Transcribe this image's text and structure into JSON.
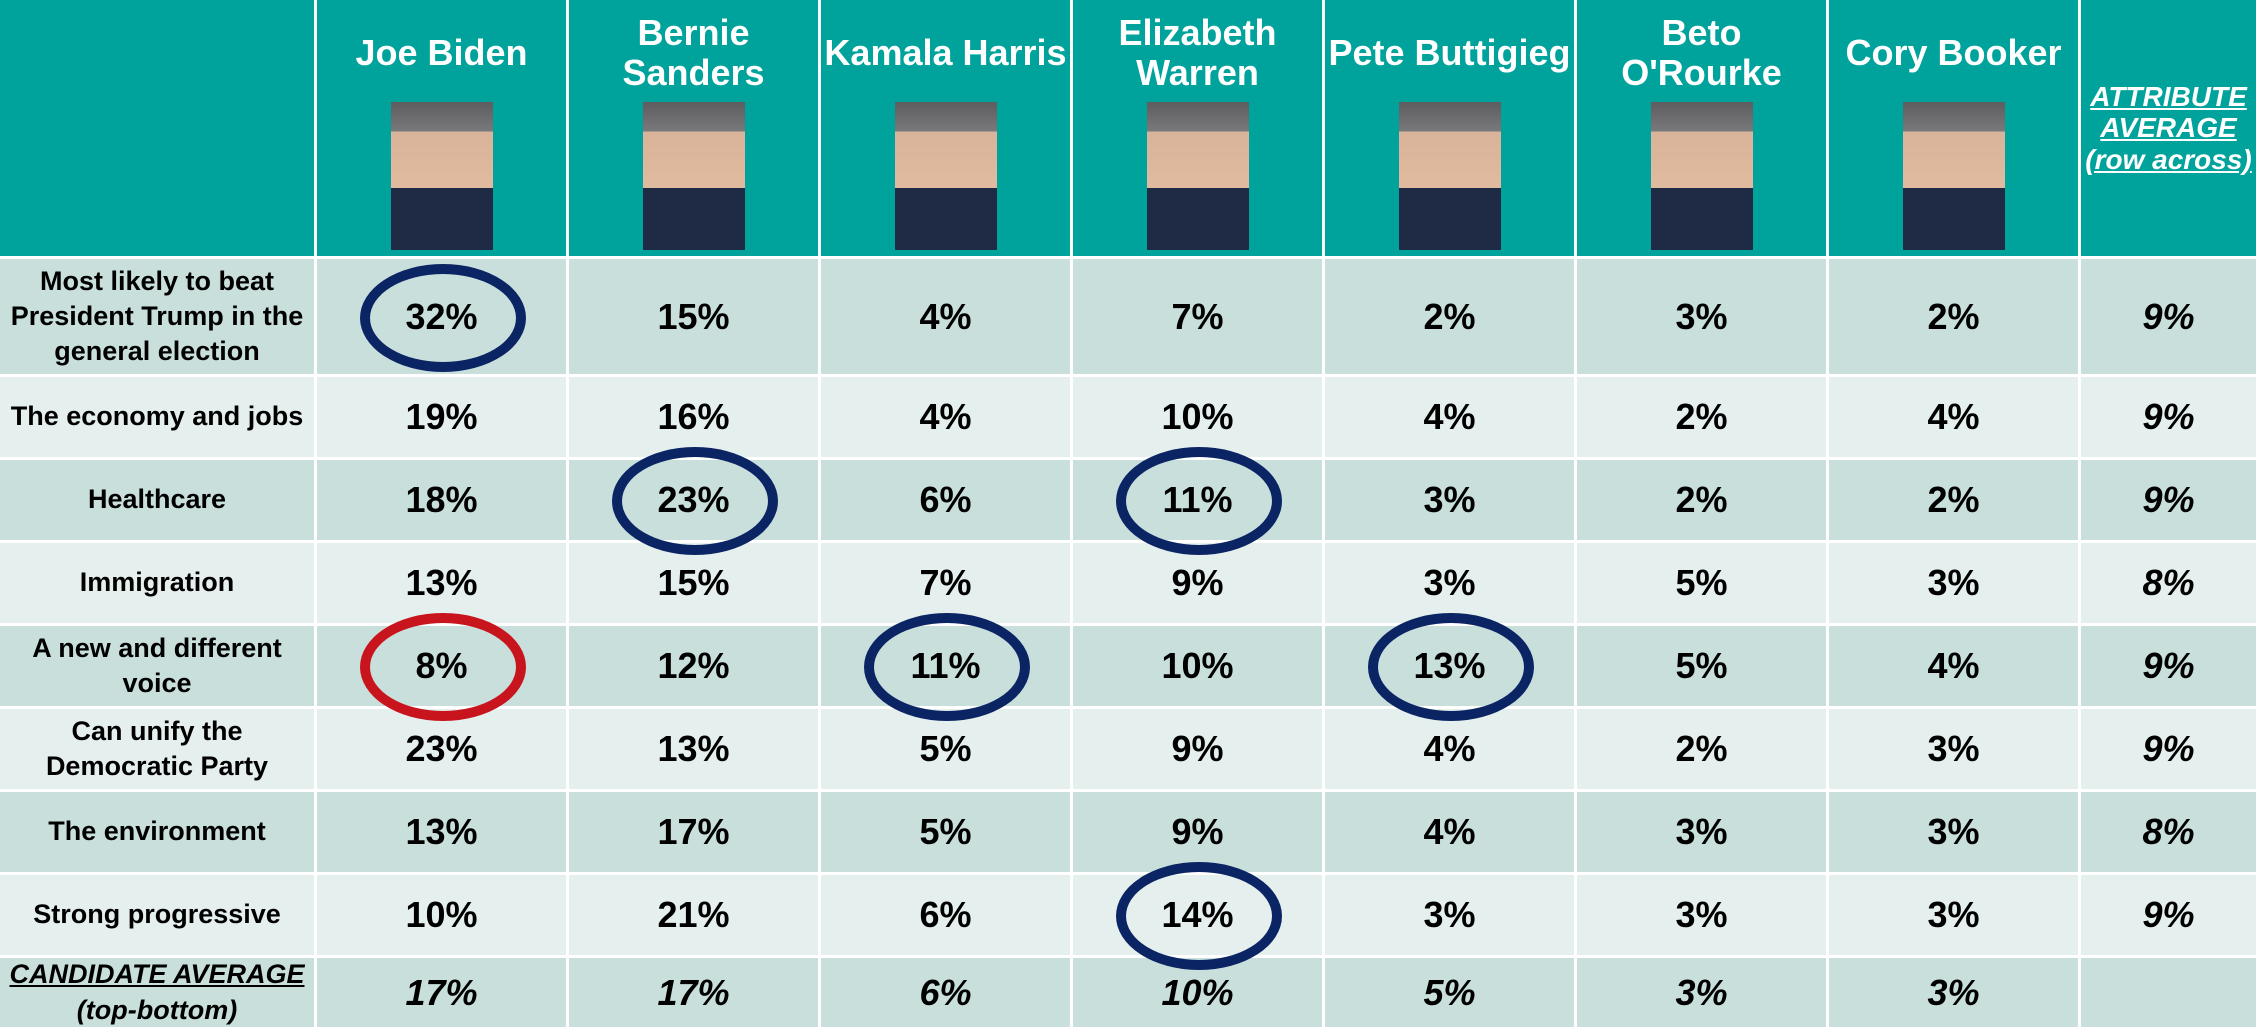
{
  "header": {
    "columns": [
      "Joe Biden",
      "Bernie Sanders",
      "Kamala Harris",
      "Elizabeth Warren",
      "Pete Buttigieg",
      "Beto O'Rourke",
      "Cory Booker"
    ],
    "average": "ATTRIBUTE AVERAGE (row across)"
  },
  "rows": [
    {
      "label": "Most likely to beat President Trump in the general election",
      "values": [
        "32%",
        "15%",
        "4%",
        "7%",
        "2%",
        "3%",
        "2%"
      ],
      "average": "9%"
    },
    {
      "label": "The economy and jobs",
      "values": [
        "19%",
        "16%",
        "4%",
        "10%",
        "4%",
        "2%",
        "4%"
      ],
      "average": "9%"
    },
    {
      "label": "Healthcare",
      "values": [
        "18%",
        "23%",
        "6%",
        "11%",
        "3%",
        "2%",
        "2%"
      ],
      "average": "9%"
    },
    {
      "label": "Immigration",
      "values": [
        "13%",
        "15%",
        "7%",
        "9%",
        "3%",
        "5%",
        "3%"
      ],
      "average": "8%"
    },
    {
      "label": "A new and different voice",
      "values": [
        "8%",
        "12%",
        "11%",
        "10%",
        "13%",
        "5%",
        "4%"
      ],
      "average": "9%"
    },
    {
      "label": "Can unify the Democratic Party",
      "values": [
        "23%",
        "13%",
        "5%",
        "9%",
        "4%",
        "2%",
        "3%"
      ],
      "average": "9%"
    },
    {
      "label": "The environment",
      "values": [
        "13%",
        "17%",
        "5%",
        "9%",
        "4%",
        "3%",
        "3%"
      ],
      "average": "8%"
    },
    {
      "label": "Strong progressive",
      "values": [
        "10%",
        "21%",
        "6%",
        "14%",
        "3%",
        "3%",
        "3%"
      ],
      "average": "9%"
    }
  ],
  "footer": {
    "label": "CANDIDATE AVERAGE",
    "sublabel": "(top-bottom)",
    "values": [
      "17%",
      "17%",
      "6%",
      "10%",
      "5%",
      "3%",
      "3%"
    ]
  }
}
